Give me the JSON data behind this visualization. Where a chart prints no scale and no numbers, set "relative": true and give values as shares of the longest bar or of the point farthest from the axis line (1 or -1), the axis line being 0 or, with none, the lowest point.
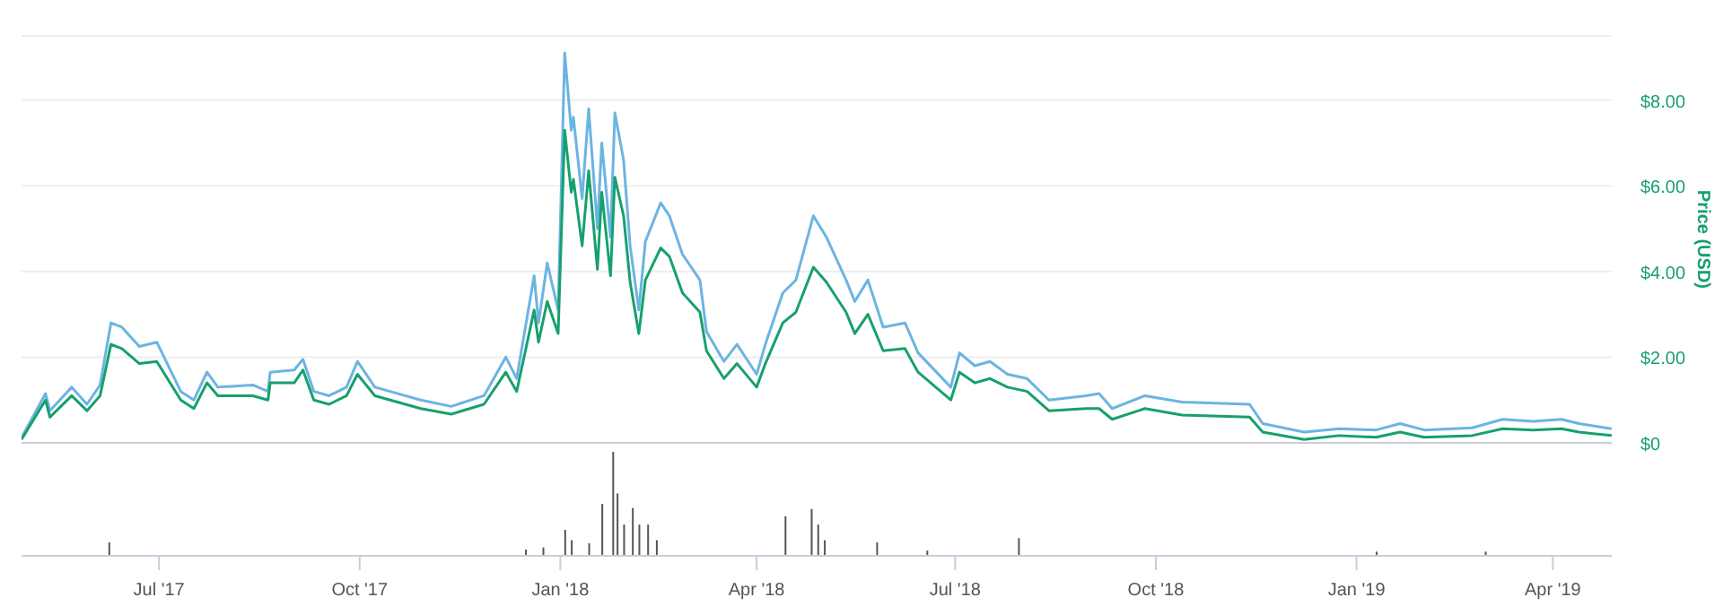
{
  "chart_data": [
    {
      "type": "line",
      "ylabel": "Price (USD)",
      "grid": "y",
      "legend": false,
      "marker": "none",
      "tick_labels": "y",
      "x": [
        "2017-04-29",
        "2017-05-10",
        "2017-05-12",
        "2017-05-22",
        "2017-05-29",
        "2017-06-04",
        "2017-06-09",
        "2017-06-14",
        "2017-06-22",
        "2017-06-30",
        "2017-07-11",
        "2017-07-17",
        "2017-07-23",
        "2017-07-28",
        "2017-08-13",
        "2017-08-20",
        "2017-08-21",
        "2017-09-01",
        "2017-09-05",
        "2017-09-10",
        "2017-09-17",
        "2017-09-25",
        "2017-09-30",
        "2017-10-08",
        "2017-10-29",
        "2017-11-12",
        "2017-11-27",
        "2017-12-07",
        "2017-12-12",
        "2017-12-20",
        "2017-12-22",
        "2017-12-26",
        "2017-12-31",
        "2018-01-03",
        "2018-01-06",
        "2018-01-07",
        "2018-01-11",
        "2018-01-14",
        "2018-01-18",
        "2018-01-20",
        "2018-01-24",
        "2018-01-26",
        "2018-01-30",
        "2018-02-02",
        "2018-02-06",
        "2018-02-09",
        "2018-02-16",
        "2018-02-20",
        "2018-02-26",
        "2018-03-06",
        "2018-03-09",
        "2018-03-17",
        "2018-03-23",
        "2018-04-01",
        "2018-04-05",
        "2018-04-13",
        "2018-04-19",
        "2018-04-27",
        "2018-05-03",
        "2018-05-12",
        "2018-05-16",
        "2018-05-22",
        "2018-05-29",
        "2018-06-08",
        "2018-06-14",
        "2018-06-29",
        "2018-07-03",
        "2018-07-10",
        "2018-07-17",
        "2018-07-25",
        "2018-08-03",
        "2018-08-13",
        "2018-08-30",
        "2018-09-05",
        "2018-09-11",
        "2018-09-26",
        "2018-10-13",
        "2018-11-13",
        "2018-11-19",
        "2018-12-08",
        "2018-12-24",
        "2019-01-10",
        "2019-01-21",
        "2019-02-01",
        "2019-02-23",
        "2019-03-09",
        "2019-03-23",
        "2019-04-05",
        "2019-04-13",
        "2019-04-28"
      ],
      "series": [
        {
          "color": "#6cb4e2",
          "values": [
            0.12,
            1.15,
            0.75,
            1.3,
            0.9,
            1.35,
            2.8,
            2.7,
            2.25,
            2.35,
            1.2,
            1.0,
            1.65,
            1.3,
            1.35,
            1.2,
            1.65,
            1.7,
            1.95,
            1.2,
            1.1,
            1.3,
            1.9,
            1.3,
            1.0,
            0.85,
            1.1,
            2.0,
            1.5,
            3.9,
            2.8,
            4.2,
            3.1,
            9.1,
            7.3,
            7.6,
            5.7,
            7.8,
            5.0,
            7.0,
            4.8,
            7.7,
            6.6,
            4.6,
            3.1,
            4.7,
            5.6,
            5.3,
            4.4,
            3.8,
            2.6,
            1.9,
            2.3,
            1.6,
            2.3,
            3.5,
            3.8,
            5.3,
            4.8,
            3.8,
            3.3,
            3.8,
            2.7,
            2.8,
            2.1,
            1.3,
            2.1,
            1.8,
            1.9,
            1.6,
            1.5,
            1.0,
            1.1,
            1.15,
            0.8,
            1.1,
            0.95,
            0.9,
            0.45,
            0.25,
            0.33,
            0.3,
            0.45,
            0.3,
            0.35,
            0.55,
            0.5,
            0.55,
            0.45,
            0.33
          ]
        },
        {
          "color": "#17a06e",
          "values": [
            0.08,
            1.0,
            0.6,
            1.1,
            0.75,
            1.1,
            2.3,
            2.2,
            1.85,
            1.9,
            1.0,
            0.8,
            1.4,
            1.1,
            1.1,
            1.0,
            1.4,
            1.4,
            1.7,
            1.0,
            0.9,
            1.1,
            1.6,
            1.1,
            0.8,
            0.67,
            0.9,
            1.65,
            1.2,
            3.1,
            2.35,
            3.3,
            2.55,
            7.3,
            5.85,
            6.15,
            4.6,
            6.35,
            4.05,
            5.85,
            3.9,
            6.2,
            5.3,
            3.75,
            2.55,
            3.8,
            4.55,
            4.35,
            3.5,
            3.05,
            2.15,
            1.5,
            1.85,
            1.3,
            1.85,
            2.8,
            3.05,
            4.1,
            3.75,
            3.05,
            2.55,
            3.0,
            2.15,
            2.2,
            1.65,
            1.0,
            1.65,
            1.4,
            1.5,
            1.3,
            1.2,
            0.75,
            0.8,
            0.8,
            0.55,
            0.8,
            0.65,
            0.6,
            0.25,
            0.08,
            0.17,
            0.13,
            0.25,
            0.13,
            0.17,
            0.33,
            0.3,
            0.33,
            0.25,
            0.17
          ]
        }
      ],
      "xlim": [
        "2017-04-29",
        "2019-04-28"
      ],
      "ylim": [
        0,
        9.5
      ],
      "yticks": [
        {
          "value": 0,
          "label": "$0"
        },
        {
          "value": 2,
          "label": "$2.00"
        },
        {
          "value": 4,
          "label": "$4.00"
        },
        {
          "value": 6,
          "label": "$6.00"
        },
        {
          "value": 8,
          "label": "$8.00"
        }
      ]
    },
    {
      "type": "bar",
      "relative": true,
      "legend": false,
      "color": "#555555",
      "x": [
        "2017-06-08",
        "2017-12-16",
        "2017-12-24",
        "2018-01-03",
        "2018-01-06",
        "2018-01-14",
        "2018-01-20",
        "2018-01-25",
        "2018-01-27",
        "2018-01-30",
        "2018-02-03",
        "2018-02-06",
        "2018-02-10",
        "2018-02-14",
        "2018-04-14",
        "2018-04-26",
        "2018-04-29",
        "2018-05-02",
        "2018-05-26",
        "2018-06-18",
        "2018-07-30",
        "2019-01-10",
        "2019-03-01"
      ],
      "values": [
        0.13,
        0.06,
        0.08,
        0.25,
        0.15,
        0.12,
        0.5,
        1,
        0.6,
        0.3,
        0.46,
        0.3,
        0.3,
        0.15,
        0.38,
        0.45,
        0.3,
        0.15,
        0.13,
        0.05,
        0.17,
        0.04,
        0.04
      ],
      "xlim": [
        "2017-04-29",
        "2019-04-28"
      ],
      "xticks": [
        {
          "value": "2017-07-01",
          "label": "Jul '17"
        },
        {
          "value": "2017-10-01",
          "label": "Oct '17"
        },
        {
          "value": "2018-01-01",
          "label": "Jan '18"
        },
        {
          "value": "2018-04-01",
          "label": "Apr '18"
        },
        {
          "value": "2018-07-01",
          "label": "Jul '18"
        },
        {
          "value": "2018-10-01",
          "label": "Oct '18"
        },
        {
          "value": "2019-01-01",
          "label": "Jan '19"
        },
        {
          "value": "2019-04-01",
          "label": "Apr '19"
        }
      ]
    }
  ]
}
